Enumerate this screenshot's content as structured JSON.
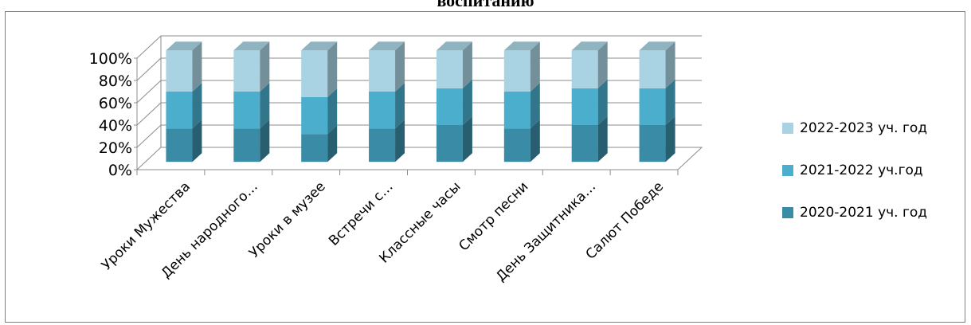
{
  "chart_data": {
    "type": "bar",
    "stacked": "percent",
    "title": "воспитанию",
    "categories": [
      "Уроки Мужества",
      "День народного…",
      "Уроки в музее",
      "Встречи с…",
      "Классные часы",
      "Смотр песни",
      "День Защитника…",
      "Салют Победе"
    ],
    "series": [
      {
        "name": "2020-2021 уч. год",
        "values": [
          30,
          30,
          25,
          30,
          33,
          30,
          33,
          33
        ],
        "color": "#3a8ba6"
      },
      {
        "name": "2021-2022 уч.год",
        "values": [
          33,
          33,
          33,
          33,
          33,
          33,
          33,
          33
        ],
        "color": "#4aaecc"
      },
      {
        "name": "2022-2023 уч. год",
        "values": [
          37,
          37,
          42,
          37,
          34,
          37,
          34,
          34
        ],
        "color": "#a9d3e2"
      }
    ],
    "yticks": [
      "0%",
      "20%",
      "40%",
      "60%",
      "80%",
      "100%"
    ],
    "ylim": [
      0,
      100
    ],
    "grid": true,
    "legend_position": "right"
  }
}
